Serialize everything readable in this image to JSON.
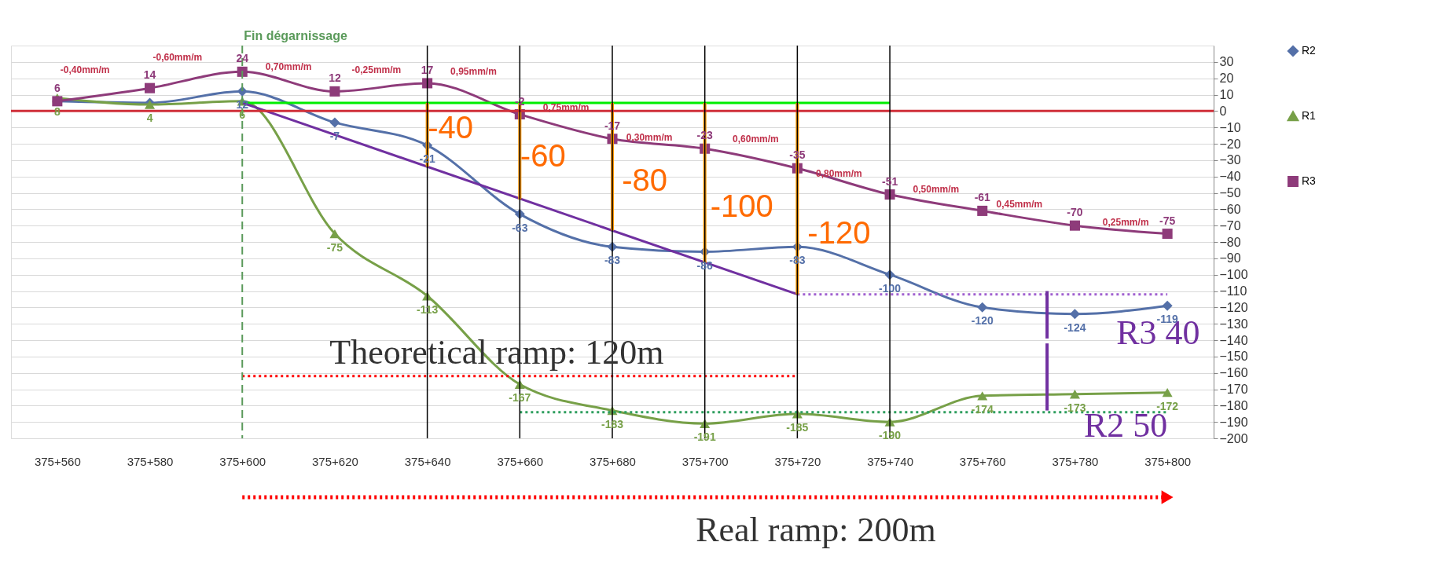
{
  "chart_data": {
    "type": "line",
    "categories": [
      "375+560",
      "375+580",
      "375+600",
      "375+620",
      "375+640",
      "375+660",
      "375+680",
      "375+700",
      "375+720",
      "375+740",
      "375+760",
      "375+780",
      "375+800"
    ],
    "ylim": [
      -200,
      40
    ],
    "yticks": [
      -200,
      -190,
      -180,
      -170,
      -160,
      -150,
      -140,
      -130,
      -120,
      -110,
      -100,
      -90,
      -80,
      -70,
      -60,
      -50,
      -40,
      -30,
      -20,
      -10,
      0,
      10,
      20,
      30
    ],
    "grid": "y",
    "legend": "right",
    "series": [
      {
        "name": "R2",
        "color": "#5470a8",
        "marker": "diamond",
        "values": [
          6,
          5,
          12,
          -7,
          -21,
          -63,
          -83,
          -86,
          -83,
          -100,
          -120,
          -124,
          -119
        ],
        "value_labels": [
          null,
          null,
          "12",
          "-7",
          "-21",
          "-63",
          "-83",
          "-86",
          "-83",
          "-100",
          "-120",
          "-124",
          "-119"
        ]
      },
      {
        "name": "R1",
        "color": "#77a048",
        "marker": "triangle",
        "values": [
          8,
          4,
          6,
          -75,
          -113,
          -167,
          -183,
          -191,
          -185,
          -190,
          -174,
          -173,
          -172
        ],
        "value_labels": [
          "8",
          "4",
          "6",
          "-75",
          "-113",
          "-167",
          "-183",
          "-191",
          "-185",
          "-190",
          "-174",
          "-173",
          "-172"
        ]
      },
      {
        "name": "R3",
        "color": "#8e3b7a",
        "marker": "square",
        "values": [
          6,
          14,
          24,
          12,
          17,
          -2,
          -17,
          -23,
          -35,
          -51,
          -61,
          -70,
          -75
        ],
        "value_labels": [
          "6",
          "14",
          "24",
          "12",
          "17",
          "-2",
          "-17",
          "-23",
          "-35",
          "-51",
          "-61",
          "-70",
          "-75"
        ]
      },
      {
        "color": "#00ee00",
        "marker": "none",
        "x": [
          "375+600",
          "375+740"
        ],
        "values": [
          5,
          5
        ]
      },
      {
        "color": "#7030a0",
        "marker": "none",
        "x": [
          "375+600",
          "375+720"
        ],
        "values": [
          5,
          -112
        ]
      },
      {
        "color": "#a060d0",
        "marker": "none",
        "line_style": "dotted",
        "x": [
          "375+720",
          "375+800"
        ],
        "values": [
          -112,
          -112
        ]
      },
      {
        "color": "#2e9e5e",
        "marker": "none",
        "line_style": "dotted",
        "x": [
          "375+660",
          "375+800"
        ],
        "values": [
          -184,
          -184
        ]
      },
      {
        "color": "#ff0000",
        "marker": "none",
        "line_style": "dotted",
        "x": [
          "375+600",
          "375+720"
        ],
        "values": [
          -162,
          -162
        ]
      },
      {
        "color": "#ff9900",
        "marker": "none",
        "x": [
          "375+640",
          "375+640"
        ],
        "values": [
          5,
          -34
        ]
      },
      {
        "color": "#ff9900",
        "marker": "none",
        "x": [
          "375+660",
          "375+660"
        ],
        "values": [
          5,
          -54
        ]
      },
      {
        "color": "#ff9900",
        "marker": "none",
        "x": [
          "375+680",
          "375+680"
        ],
        "values": [
          5,
          -73
        ]
      },
      {
        "color": "#ff9900",
        "marker": "none",
        "x": [
          "375+700",
          "375+700"
        ],
        "values": [
          5,
          -93
        ]
      },
      {
        "color": "#ff9900",
        "marker": "none",
        "x": [
          "375+720",
          "375+720"
        ],
        "values": [
          5,
          -112
        ]
      },
      {
        "color": "#7030a0",
        "marker": "none",
        "x": [
          "375+780",
          "375+780"
        ],
        "values": [
          -139,
          -110
        ]
      },
      {
        "color": "#7030a0",
        "marker": "none",
        "x": [
          "375+780",
          "375+780"
        ],
        "values": [
          -183,
          -142
        ]
      }
    ],
    "ref_lines": [
      {
        "axis": "y",
        "value": 0,
        "color": "#d0303a"
      },
      {
        "axis": "x",
        "value": "375+600",
        "label": "Fin dégarnissage",
        "color": "#5a9a5a",
        "line_style": "dashed"
      },
      {
        "axis": "x",
        "value": "375+640",
        "color": "#000000"
      },
      {
        "axis": "x",
        "value": "375+660",
        "color": "#000000"
      },
      {
        "axis": "x",
        "value": "375+680",
        "color": "#000000"
      },
      {
        "axis": "x",
        "value": "375+700",
        "color": "#000000"
      },
      {
        "axis": "x",
        "value": "375+720",
        "color": "#000000"
      },
      {
        "axis": "x",
        "value": "375+740",
        "color": "#000000"
      }
    ],
    "annotations": [
      "-0,40mm/m",
      "-0,60mm/m",
      "0,70mm/m",
      "-0,25mm/m",
      "0,95mm/m",
      "0,75mm/m",
      "0,30mm/m",
      "0,60mm/m",
      "0,80mm/m",
      "0,50mm/m",
      "0,45mm/m",
      "0,25mm/m",
      "-40",
      "-60",
      "-80",
      "-100",
      "-120",
      "Theoretical ramp: 120m",
      "R3 40",
      "R2 50",
      "Real ramp: 200m"
    ]
  }
}
